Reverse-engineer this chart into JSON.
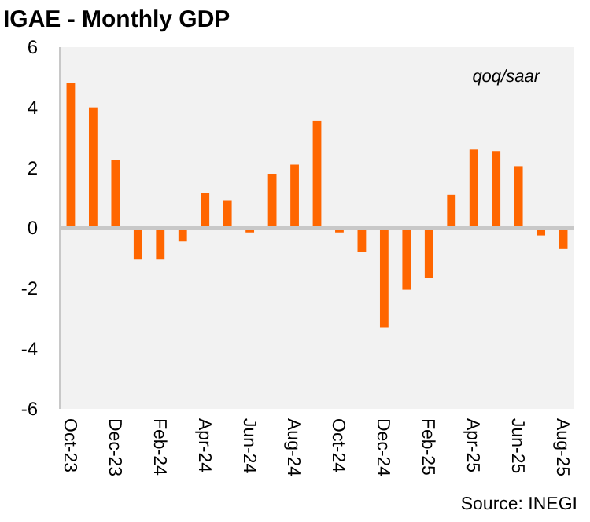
{
  "chart_data": {
    "type": "bar",
    "title": "IGAE - Monthly GDP",
    "categories": [
      "Oct-23",
      null,
      "Dec-23",
      null,
      "Feb-24",
      null,
      "Apr-24",
      null,
      "Jun-24",
      null,
      "Aug-24",
      null,
      "Oct-24",
      null,
      "Dec-24",
      null,
      "Feb-25",
      null,
      "Apr-25",
      null,
      "Jun-25",
      null,
      "Aug-25"
    ],
    "values": [
      4.8,
      4.0,
      2.25,
      -1.05,
      -1.05,
      -0.45,
      1.15,
      0.9,
      -0.15,
      1.8,
      2.1,
      3.55,
      -0.15,
      -0.8,
      -3.3,
      -2.05,
      -1.65,
      1.1,
      2.6,
      2.55,
      2.05,
      -0.25,
      -0.7
    ],
    "color": "#ff6600",
    "ylim": [
      -6,
      6
    ],
    "yticks": [
      -6,
      -4,
      -2,
      0,
      2,
      4,
      6
    ],
    "ref_lines": [
      {
        "axis": "y",
        "value": 0,
        "color": "#c8c8c8"
      }
    ],
    "annotations": [
      "qoq/saar",
      "Source: INEGI"
    ]
  }
}
